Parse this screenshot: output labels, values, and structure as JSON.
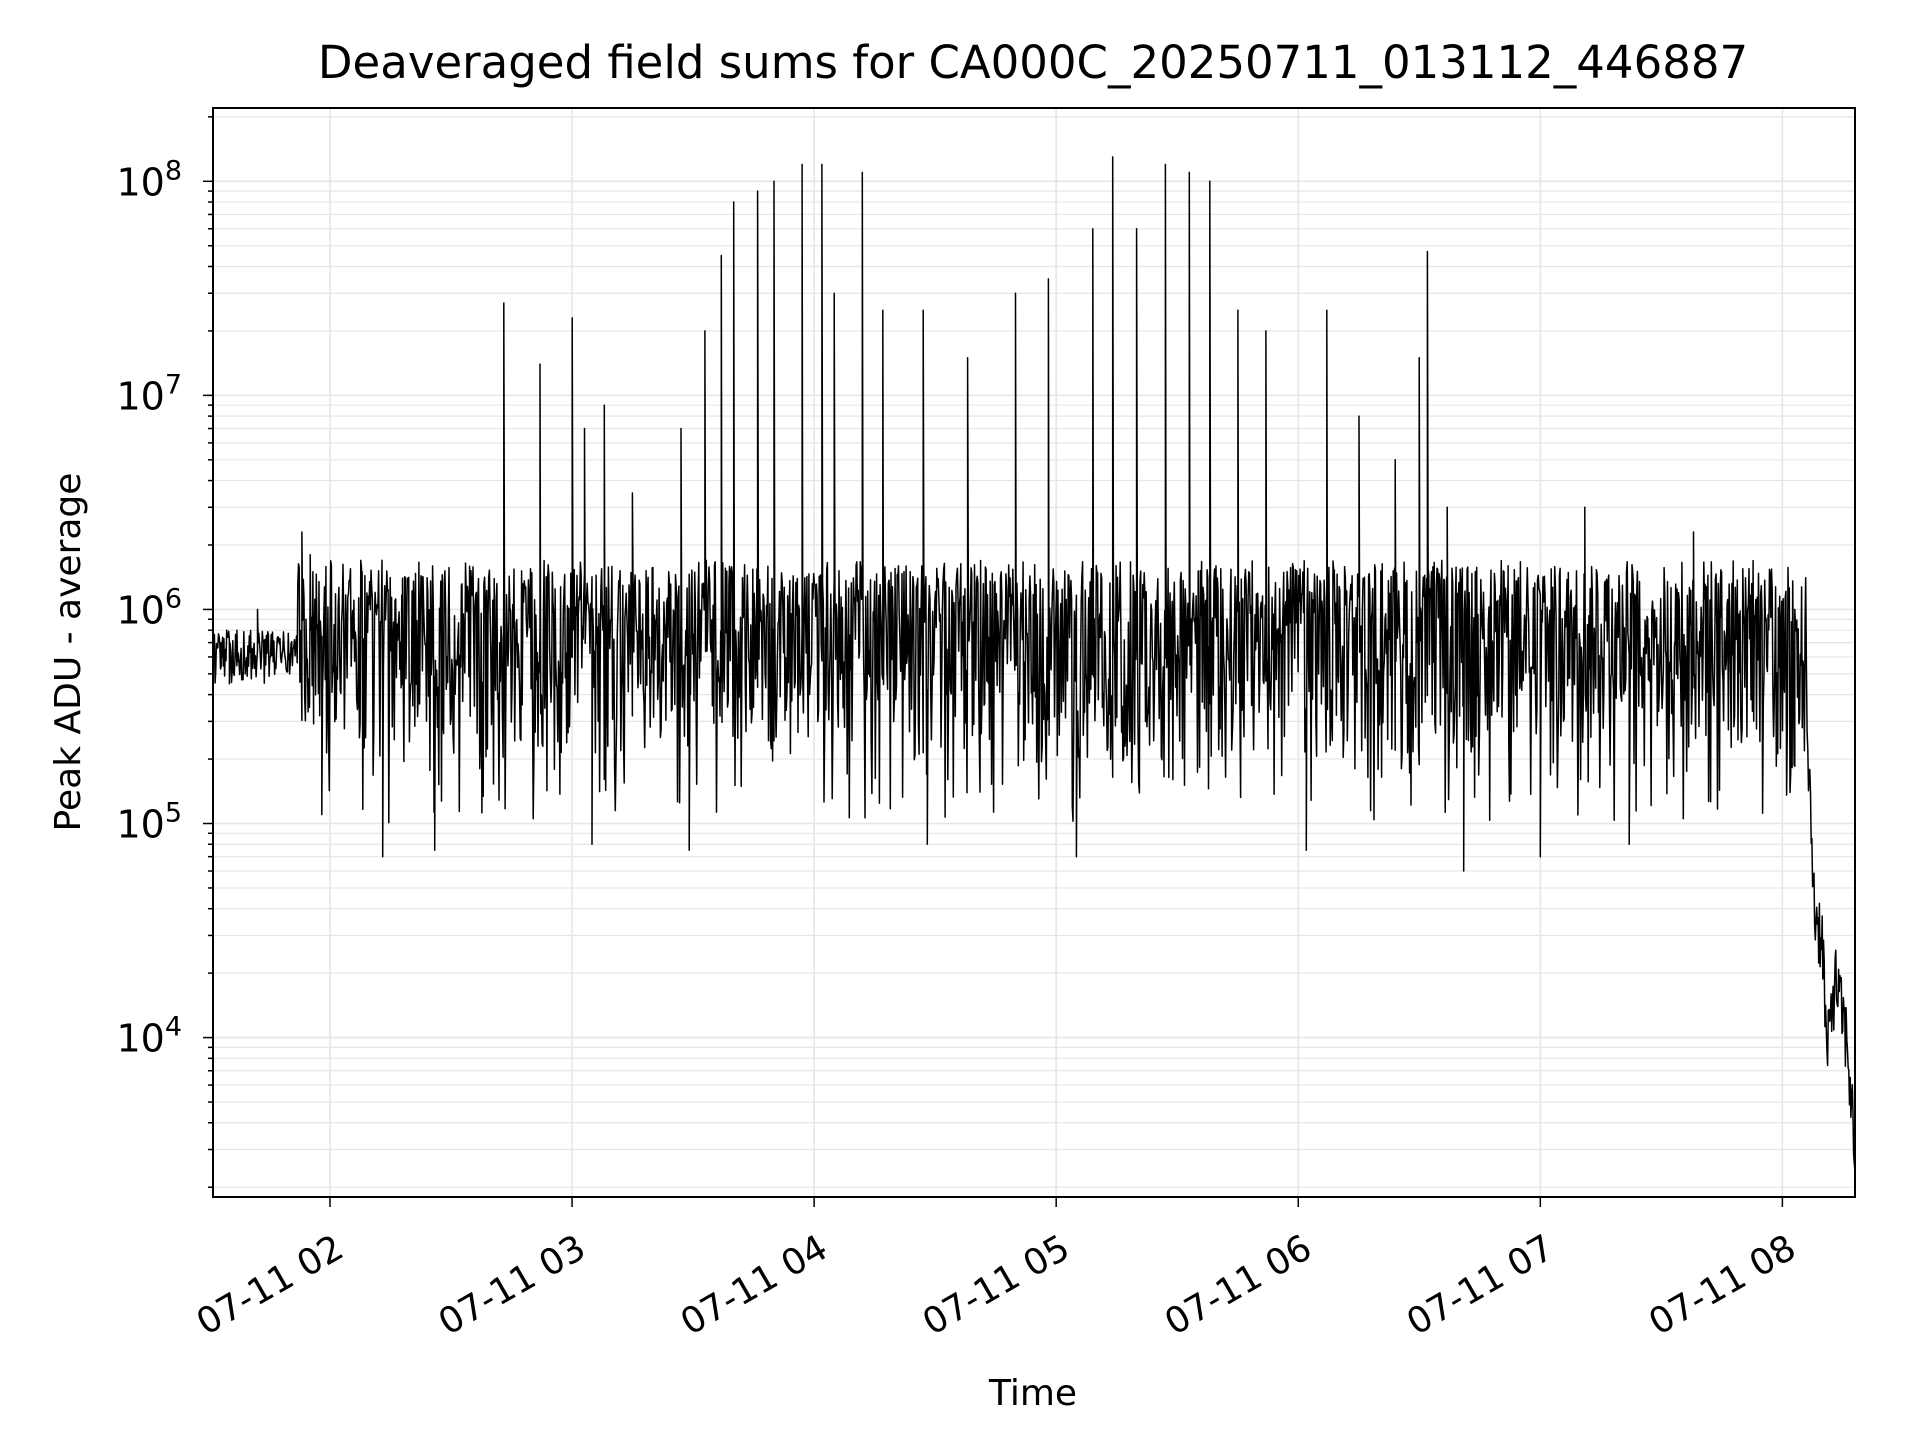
{
  "chart_data": {
    "type": "line",
    "title": "Deaveraged field sums for CA000C_20250711_013112_446887",
    "xlabel": "Time",
    "ylabel": "Peak ADU - average",
    "x_scale": "time",
    "y_scale": "log",
    "xlim": [
      "2025-07-11 01:31",
      "2025-07-11 08:18"
    ],
    "ylim": [
      1800,
      220000000
    ],
    "x_ticks": [
      {
        "value": "2025-07-11 02:00",
        "label": "07-11 02"
      },
      {
        "value": "2025-07-11 03:00",
        "label": "07-11 03"
      },
      {
        "value": "2025-07-11 04:00",
        "label": "07-11 04"
      },
      {
        "value": "2025-07-11 05:00",
        "label": "07-11 05"
      },
      {
        "value": "2025-07-11 06:00",
        "label": "07-11 06"
      },
      {
        "value": "2025-07-11 07:00",
        "label": "07-11 07"
      },
      {
        "value": "2025-07-11 08:00",
        "label": "07-11 08"
      }
    ],
    "y_ticks": [
      {
        "value": 10000,
        "base": "10",
        "exp": "4"
      },
      {
        "value": 100000,
        "base": "10",
        "exp": "5"
      },
      {
        "value": 1000000,
        "base": "10",
        "exp": "6"
      },
      {
        "value": 10000000,
        "base": "10",
        "exp": "7"
      },
      {
        "value": 100000000,
        "base": "10",
        "exp": "8"
      }
    ],
    "grid": true,
    "legend": "none",
    "colors": {
      "line": "#000000",
      "grid": "#e6e6e6",
      "axes": "#000000"
    },
    "series": [
      {
        "values_note": "approximate envelope read from the plot",
        "points": [
          [
            "2025-07-11 01:31",
            500000
          ],
          [
            "2025-07-11 01:33",
            700000
          ],
          [
            "2025-07-11 01:35",
            450000
          ],
          [
            "2025-07-11 01:37",
            800000
          ],
          [
            "2025-07-11 01:39",
            500000
          ],
          [
            "2025-07-11 01:42",
            1000000
          ],
          [
            "2025-07-11 01:44",
            550000
          ],
          [
            "2025-07-11 01:47",
            700000
          ],
          [
            "2025-07-11 01:50",
            500000
          ],
          [
            "2025-07-11 01:52",
            1300000
          ],
          [
            "2025-07-11 01:53",
            2300000
          ],
          [
            "2025-07-11 01:54",
            900000
          ],
          [
            "2025-07-11 01:55",
            1800000
          ],
          [
            "2025-07-11 01:56",
            600000
          ],
          [
            "2025-07-11 01:58",
            110000
          ],
          [
            "2025-07-11 02:00",
            800000
          ],
          [
            "2025-07-11 02:08",
            1500000
          ],
          [
            "2025-07-11 02:13",
            70000
          ],
          [
            "2025-07-11 02:18",
            1400000
          ],
          [
            "2025-07-11 02:26",
            75000
          ],
          [
            "2025-07-11 02:43",
            27000000
          ],
          [
            "2025-07-11 02:52",
            14000000
          ],
          [
            "2025-07-11 03:00",
            23000000
          ],
          [
            "2025-07-11 03:03",
            7000000
          ],
          [
            "2025-07-11 03:05",
            80000
          ],
          [
            "2025-07-11 03:08",
            9000000
          ],
          [
            "2025-07-11 03:15",
            3500000
          ],
          [
            "2025-07-11 03:27",
            7000000
          ],
          [
            "2025-07-11 03:29",
            75000
          ],
          [
            "2025-07-11 03:33",
            20000000
          ],
          [
            "2025-07-11 03:37",
            45000000
          ],
          [
            "2025-07-11 03:40",
            80000000
          ],
          [
            "2025-07-11 03:46",
            90000000
          ],
          [
            "2025-07-11 03:50",
            100000000
          ],
          [
            "2025-07-11 03:57",
            120000000
          ],
          [
            "2025-07-11 04:02",
            120000000
          ],
          [
            "2025-07-11 04:05",
            30000000
          ],
          [
            "2025-07-11 04:12",
            110000000
          ],
          [
            "2025-07-11 04:17",
            25000000
          ],
          [
            "2025-07-11 04:27",
            25000000
          ],
          [
            "2025-07-11 04:28",
            80000
          ],
          [
            "2025-07-11 04:38",
            15000000
          ],
          [
            "2025-07-11 04:50",
            30000000
          ],
          [
            "2025-07-11 04:58",
            35000000
          ],
          [
            "2025-07-11 05:05",
            70000
          ],
          [
            "2025-07-11 05:09",
            60000000
          ],
          [
            "2025-07-11 05:14",
            130000000
          ],
          [
            "2025-07-11 05:20",
            60000000
          ],
          [
            "2025-07-11 05:27",
            120000000
          ],
          [
            "2025-07-11 05:33",
            110000000
          ],
          [
            "2025-07-11 05:38",
            100000000
          ],
          [
            "2025-07-11 05:45",
            25000000
          ],
          [
            "2025-07-11 05:52",
            20000000
          ],
          [
            "2025-07-11 06:02",
            75000
          ],
          [
            "2025-07-11 06:07",
            25000000
          ],
          [
            "2025-07-11 06:15",
            8000000
          ],
          [
            "2025-07-11 06:24",
            5000000
          ],
          [
            "2025-07-11 06:30",
            15000000
          ],
          [
            "2025-07-11 06:32",
            47000000
          ],
          [
            "2025-07-11 06:37",
            3000000
          ],
          [
            "2025-07-11 06:39",
            1100000
          ],
          [
            "2025-07-11 06:41",
            60000
          ],
          [
            "2025-07-11 06:52",
            1600000
          ],
          [
            "2025-07-11 07:00",
            70000
          ],
          [
            "2025-07-11 07:11",
            3000000
          ],
          [
            "2025-07-11 07:22",
            80000
          ],
          [
            "2025-07-11 07:38",
            2300000
          ],
          [
            "2025-07-11 07:45",
            1500000
          ],
          [
            "2025-07-11 07:57",
            1500000
          ],
          [
            "2025-07-11 08:03",
            1000000
          ],
          [
            "2025-07-11 08:06",
            300000
          ],
          [
            "2025-07-11 08:08",
            40000
          ],
          [
            "2025-07-11 08:10",
            30000
          ],
          [
            "2025-07-11 08:11",
            8000
          ],
          [
            "2025-07-11 08:13",
            20000
          ],
          [
            "2025-07-11 08:16",
            10000
          ],
          [
            "2025-07-11 08:18",
            3000
          ]
        ]
      }
    ]
  }
}
